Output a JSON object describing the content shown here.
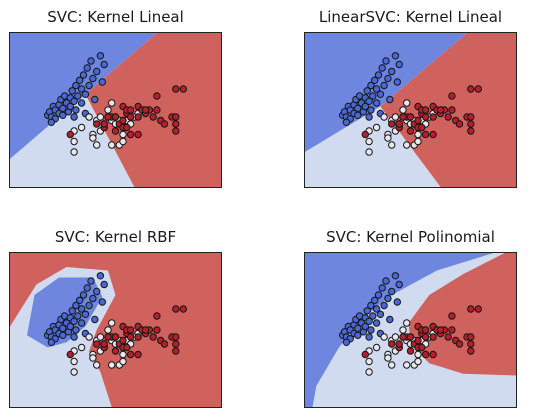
{
  "colors": {
    "class0_region": "#6f86df",
    "class1_region": "#d0dbef",
    "class2_region": "#d0625e",
    "class0_point": "#4a68d3",
    "class1_point": "#e7e7ee",
    "class2_point": "#b3202b",
    "point_edge": "#151515"
  },
  "chart_data": [
    {
      "type": "scatter",
      "title": "SVC: Kernel Lineal",
      "xlabel": "",
      "ylabel": "",
      "xlim": [
        3.3,
        8.9
      ],
      "ylim": [
        1.0,
        5.4
      ],
      "grid": false,
      "regions": [
        {
          "class": 0,
          "polygon": [
            [
              3.3,
              1.0
            ],
            [
              3.3,
              5.4
            ],
            [
              7.2,
              5.4
            ],
            [
              5.3,
              3.65
            ],
            [
              3.3,
              1.8
            ]
          ]
        },
        {
          "class": 1,
          "polygon": [
            [
              3.3,
              1.0
            ],
            [
              3.3,
              1.8
            ],
            [
              5.3,
              3.65
            ],
            [
              6.6,
              1.0
            ]
          ]
        },
        {
          "class": 2,
          "polygon": [
            [
              6.6,
              1.0
            ],
            [
              5.3,
              3.65
            ],
            [
              7.2,
              5.4
            ],
            [
              8.9,
              5.4
            ],
            [
              8.9,
              1.0
            ]
          ]
        }
      ],
      "series_ref": "points"
    },
    {
      "type": "scatter",
      "title": "LinearSVC: Kernel Lineal",
      "xlabel": "",
      "ylabel": "",
      "xlim": [
        3.3,
        8.9
      ],
      "ylim": [
        1.0,
        5.4
      ],
      "grid": false,
      "regions": [
        {
          "class": 0,
          "polygon": [
            [
              3.3,
              1.0
            ],
            [
              3.3,
              5.4
            ],
            [
              7.6,
              5.4
            ],
            [
              5.3,
              3.3
            ],
            [
              3.3,
              2.0
            ]
          ]
        },
        {
          "class": 1,
          "polygon": [
            [
              3.3,
              1.0
            ],
            [
              3.3,
              2.0
            ],
            [
              5.3,
              3.3
            ],
            [
              6.9,
              1.0
            ]
          ]
        },
        {
          "class": 2,
          "polygon": [
            [
              6.9,
              1.0
            ],
            [
              5.3,
              3.3
            ],
            [
              7.6,
              5.4
            ],
            [
              8.9,
              5.4
            ],
            [
              8.9,
              1.0
            ]
          ]
        }
      ],
      "series_ref": "points"
    },
    {
      "type": "scatter",
      "title": "SVC: Kernel RBF",
      "xlabel": "",
      "ylabel": "",
      "xlim": [
        3.3,
        8.9
      ],
      "ylim": [
        1.0,
        5.4
      ],
      "grid": false,
      "regions": [
        {
          "class": 1,
          "polygon": [
            [
              3.3,
              1.0
            ],
            [
              3.3,
              3.3
            ],
            [
              4.0,
              4.5
            ],
            [
              4.8,
              5.0
            ],
            [
              5.9,
              4.9
            ],
            [
              6.1,
              4.2
            ],
            [
              5.6,
              3.2
            ],
            [
              5.4,
              2.6
            ],
            [
              5.7,
              2.0
            ],
            [
              6.0,
              1.0
            ]
          ]
        },
        {
          "class": 0,
          "polygon": [
            [
              3.75,
              3.05
            ],
            [
              3.95,
              4.2
            ],
            [
              4.6,
              4.7
            ],
            [
              5.5,
              4.7
            ],
            [
              5.75,
              4.15
            ],
            [
              5.3,
              3.3
            ],
            [
              4.8,
              2.85
            ],
            [
              4.3,
              2.7
            ]
          ]
        }
      ],
      "background_class": 2,
      "series_ref": "points"
    },
    {
      "type": "scatter",
      "title": "SVC: Kernel Polinomial",
      "xlabel": "",
      "ylabel": "",
      "xlim": [
        3.3,
        8.9
      ],
      "ylim": [
        1.0,
        5.4
      ],
      "grid": false,
      "regions": [
        {
          "class": 0,
          "polygon": [
            [
              3.3,
              1.0
            ],
            [
              3.3,
              5.4
            ],
            [
              8.3,
              5.4
            ],
            [
              6.8,
              4.9
            ],
            [
              5.6,
              4.2
            ],
            [
              4.8,
              3.5
            ],
            [
              4.2,
              2.7
            ],
            [
              3.6,
              1.6
            ],
            [
              3.5,
              1.0
            ]
          ]
        },
        {
          "class": 2,
          "polygon": [
            [
              8.9,
              5.4
            ],
            [
              8.6,
              5.4
            ],
            [
              7.5,
              4.8
            ],
            [
              6.6,
              4.2
            ],
            [
              6.05,
              3.4
            ],
            [
              6.1,
              2.8
            ],
            [
              6.6,
              2.25
            ],
            [
              7.5,
              1.95
            ],
            [
              8.9,
              1.9
            ]
          ]
        }
      ],
      "background_class": 1,
      "series_ref": "points"
    }
  ],
  "points": {
    "class0": [
      [
        4.3,
        3.05
      ],
      [
        4.35,
        3.15
      ],
      [
        4.4,
        3.0
      ],
      [
        4.45,
        3.3
      ],
      [
        4.5,
        3.2
      ],
      [
        4.6,
        3.35
      ],
      [
        4.6,
        3.1
      ],
      [
        4.65,
        3.5
      ],
      [
        4.7,
        3.25
      ],
      [
        4.75,
        3.6
      ],
      [
        4.8,
        3.4
      ],
      [
        4.85,
        3.15
      ],
      [
        4.9,
        3.55
      ],
      [
        4.9,
        3.3
      ],
      [
        4.95,
        3.75
      ],
      [
        5.0,
        3.45
      ],
      [
        5.05,
        3.9
      ],
      [
        5.05,
        3.2
      ],
      [
        5.1,
        3.6
      ],
      [
        5.15,
        4.05
      ],
      [
        5.2,
        3.8
      ],
      [
        5.2,
        3.4
      ],
      [
        5.25,
        4.2
      ],
      [
        5.3,
        3.65
      ],
      [
        5.35,
        4.4
      ],
      [
        5.4,
        3.9
      ],
      [
        5.45,
        4.6
      ],
      [
        5.5,
        4.1
      ],
      [
        5.55,
        3.5
      ],
      [
        5.6,
        4.3
      ],
      [
        5.7,
        4.75
      ],
      [
        5.75,
        4.0
      ],
      [
        5.8,
        4.5
      ],
      [
        4.7,
        3.05
      ],
      [
        5.0,
        3.0
      ],
      [
        4.5,
        2.95
      ],
      [
        5.3,
        3.1
      ],
      [
        4.4,
        2.85
      ]
    ],
    "class1": [
      [
        5.0,
        2.0
      ],
      [
        5.0,
        2.3
      ],
      [
        5.0,
        2.6
      ],
      [
        5.2,
        2.7
      ],
      [
        5.4,
        3.0
      ],
      [
        5.5,
        2.5
      ],
      [
        5.6,
        2.9
      ],
      [
        5.6,
        2.2
      ],
      [
        5.7,
        2.6
      ],
      [
        5.8,
        2.8
      ],
      [
        5.8,
        2.7
      ],
      [
        5.9,
        3.0
      ],
      [
        5.9,
        3.2
      ],
      [
        6.0,
        2.2
      ],
      [
        6.0,
        2.9
      ],
      [
        6.1,
        2.8
      ],
      [
        6.1,
        3.0
      ],
      [
        6.2,
        2.9
      ],
      [
        6.2,
        2.2
      ],
      [
        6.3,
        2.5
      ],
      [
        6.4,
        2.9
      ],
      [
        6.5,
        2.8
      ],
      [
        6.6,
        3.0
      ],
      [
        6.7,
        3.1
      ],
      [
        5.5,
        2.4
      ],
      [
        6.0,
        3.4
      ],
      [
        5.7,
        3.0
      ],
      [
        6.3,
        2.3
      ]
    ],
    "class2": [
      [
        4.9,
        2.5
      ],
      [
        5.6,
        2.8
      ],
      [
        5.8,
        2.7
      ],
      [
        5.8,
        2.8
      ],
      [
        6.0,
        3.0
      ],
      [
        6.1,
        2.6
      ],
      [
        6.2,
        2.8
      ],
      [
        6.3,
        2.7
      ],
      [
        6.3,
        2.9
      ],
      [
        6.3,
        3.3
      ],
      [
        6.4,
        2.7
      ],
      [
        6.4,
        3.1
      ],
      [
        6.4,
        3.2
      ],
      [
        6.5,
        3.0
      ],
      [
        6.5,
        3.2
      ],
      [
        6.7,
        3.0
      ],
      [
        6.7,
        3.3
      ],
      [
        6.7,
        2.5
      ],
      [
        6.8,
        3.2
      ],
      [
        6.9,
        3.1
      ],
      [
        7.0,
        3.2
      ],
      [
        7.1,
        3.0
      ],
      [
        7.2,
        3.6
      ],
      [
        7.2,
        3.2
      ],
      [
        7.3,
        2.9
      ],
      [
        7.4,
        2.8
      ],
      [
        7.6,
        3.0
      ],
      [
        7.7,
        2.6
      ],
      [
        7.7,
        3.8
      ],
      [
        7.7,
        2.8
      ],
      [
        7.9,
        3.8
      ],
      [
        7.7,
        3.0
      ],
      [
        6.9,
        3.2
      ],
      [
        6.1,
        3.0
      ],
      [
        6.5,
        2.5
      ],
      [
        5.9,
        3.0
      ]
    ]
  }
}
